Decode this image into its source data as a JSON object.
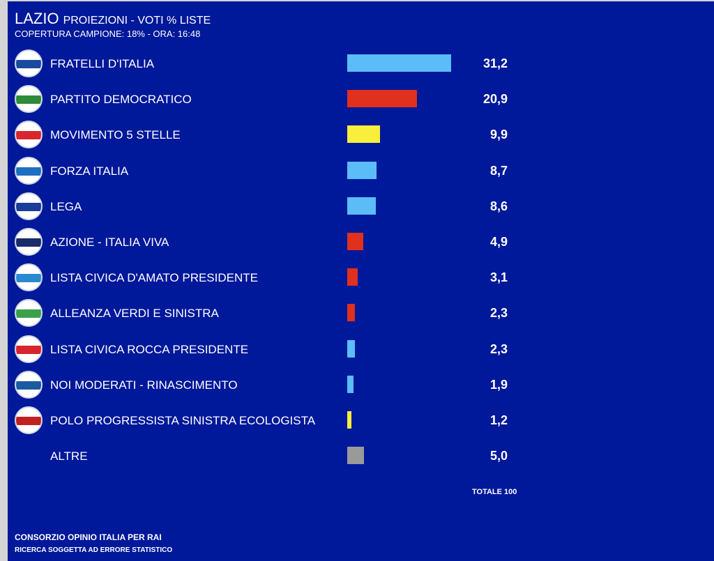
{
  "header": {
    "region": "LAZIO",
    "subtitle": "PROIEZIONI - VOTI % LISTE",
    "coverage": "COPERTURA CAMPIONE: 18%  - ORA: 16:48"
  },
  "colors": {
    "background": "#00189a",
    "blue": "#5bbcf8",
    "red": "#e0301e",
    "yellow": "#f8ee3c",
    "gray": "#9a9a9a"
  },
  "chart_data": {
    "type": "bar",
    "orientation": "horizontal",
    "title": "LAZIO PROIEZIONI - VOTI % LISTE",
    "categories": [
      "FRATELLI D'ITALIA",
      "PARTITO DEMOCRATICO",
      "MOVIMENTO 5 STELLE",
      "FORZA ITALIA",
      "LEGA",
      "AZIONE - ITALIA VIVA",
      "LISTA CIVICA D'AMATO PRESIDENTE",
      "ALLEANZA VERDI E SINISTRA",
      "LISTA CIVICA ROCCA PRESIDENTE",
      "NOI MODERATI - RINASCIMENTO",
      "POLO PROGRESSISTA SINISTRA ECOLOGISTA",
      "ALTRE"
    ],
    "values": [
      31.2,
      20.9,
      9.9,
      8.7,
      8.6,
      4.9,
      3.1,
      2.3,
      2.3,
      1.9,
      1.2,
      5.0
    ],
    "labels": [
      "31,2",
      "20,9",
      "9,9",
      "8,7",
      "8,6",
      "4,9",
      "3,1",
      "2,3",
      "2,3",
      "1,9",
      "1,2",
      "5,0"
    ],
    "bar_colors": [
      "#5bbcf8",
      "#e0301e",
      "#f8ee3c",
      "#5bbcf8",
      "#5bbcf8",
      "#e0301e",
      "#e0301e",
      "#e0301e",
      "#5bbcf8",
      "#5bbcf8",
      "#f8ee3c",
      "#9a9a9a"
    ],
    "logo_colors": [
      "#1a4aa0",
      "#2e8b3a",
      "#d8262e",
      "#1f6fc0",
      "#1a3c9a",
      "#1a2a6a",
      "#2a8ad0",
      "#3aa04a",
      "#d8262e",
      "#1a5aa0",
      "#c02020",
      null
    ],
    "xlim": [
      0,
      32
    ],
    "total": "TOTALE 100"
  },
  "footer": {
    "source": "CONSORZIO OPINIO ITALIA PER RAI",
    "disclaimer": "RICERCA SOGGETTA AD ERRORE STATISTICO"
  }
}
